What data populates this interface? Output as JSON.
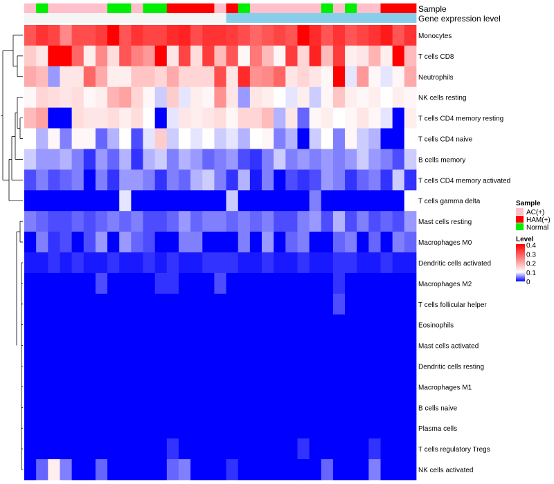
{
  "chart_data": {
    "type": "heatmap",
    "annotation_tracks": [
      "Sample",
      "Gene expression level"
    ],
    "sample_groups": [
      "AC(+)",
      "HAM(+)",
      "Normal"
    ],
    "sample_group_colors": {
      "AC(+)": "#ffc0cb",
      "HAM(+)": "#ff0000",
      "Normal": "#00ee00"
    },
    "sample_annotation": [
      0,
      2,
      0,
      0,
      0,
      0,
      0,
      2,
      2,
      0,
      2,
      2,
      1,
      1,
      1,
      1,
      0,
      1,
      2,
      0,
      0,
      0,
      0,
      0,
      0,
      2,
      0,
      2,
      0,
      0,
      1,
      1,
      1
    ],
    "expression_colors": [
      "#f5f5f5",
      "#87ceeb"
    ],
    "expression_split_column": 17,
    "rows": [
      "Monocytes",
      "T cells CD8",
      "Neutrophils",
      "NK cells resting",
      "T cells CD4 memory resting",
      "T cells CD4 naive",
      "B cells memory",
      "T cells CD4 memory activated",
      "T cells gamma delta",
      "Mast cells resting",
      "Macrophages M0",
      "Dendritic cells activated",
      "Macrophages M2",
      "T cells follicular helper",
      "Eosinophils",
      "Mast cells activated",
      "Dendritic cells resting",
      "Macrophages M1",
      "B cells naive",
      "Plasma cells",
      "T cells regulatory  Tregs",
      "NK cells activated"
    ],
    "values": [
      [
        0.3,
        0.34,
        0.32,
        0.24,
        0.31,
        0.31,
        0.33,
        0.4,
        0.3,
        0.34,
        0.32,
        0.32,
        0.35,
        0.36,
        0.31,
        0.34,
        0.34,
        0.33,
        0.31,
        0.28,
        0.3,
        0.32,
        0.3,
        0.4,
        0.35,
        0.3,
        0.34,
        0.3,
        0.32,
        0.34,
        0.37,
        0.3,
        0.34
      ],
      [
        0.16,
        0.13,
        0.4,
        0.4,
        0.28,
        0.12,
        0.24,
        0.14,
        0.3,
        0.25,
        0.22,
        0.4,
        0.13,
        0.32,
        0.14,
        0.33,
        0.18,
        0.3,
        0.11,
        0.26,
        0.18,
        0.11,
        0.33,
        0.15,
        0.36,
        0.18,
        0.33,
        0.12,
        0.13,
        0.19,
        0.12,
        0.4,
        0.18
      ],
      [
        0.2,
        0.18,
        0.06,
        0.13,
        0.13,
        0.28,
        0.2,
        0.12,
        0.12,
        0.17,
        0.17,
        0.15,
        0.2,
        0.15,
        0.15,
        0.15,
        0.31,
        0.13,
        0.35,
        0.23,
        0.24,
        0.28,
        0.13,
        0.15,
        0.13,
        0.11,
        0.4,
        0.09,
        0.22,
        0.11,
        0.09,
        0.11,
        0.2
      ],
      [
        0.11,
        0.15,
        0.14,
        0.13,
        0.14,
        0.11,
        0.12,
        0.19,
        0.21,
        0.15,
        0.11,
        0.08,
        0.16,
        0.09,
        0.12,
        0.11,
        0.23,
        0.13,
        0.06,
        0.13,
        0.12,
        0.1,
        0.09,
        0.12,
        0.08,
        0.11,
        0.17,
        0.12,
        0.11,
        0.12,
        0.1,
        0.12,
        0.11
      ],
      [
        0.18,
        0.21,
        0.0,
        0.0,
        0.14,
        0.13,
        0.13,
        0.14,
        0.12,
        0.14,
        0.1,
        0.0,
        0.09,
        0.13,
        0.12,
        0.13,
        0.14,
        0.11,
        0.15,
        0.15,
        0.18,
        0.07,
        0.13,
        0.04,
        0.11,
        0.12,
        0.1,
        0.11,
        0.13,
        0.11,
        0.09,
        0.0,
        0.12
      ],
      [
        0.1,
        0.07,
        0.11,
        0.05,
        0.11,
        0.11,
        0.04,
        0.07,
        0.1,
        0.03,
        0.09,
        0.16,
        0.08,
        0.1,
        0.09,
        0.1,
        0.08,
        0.09,
        0.07,
        0.1,
        0.11,
        0.05,
        0.07,
        0.0,
        0.08,
        0.1,
        0.05,
        0.11,
        0.08,
        0.07,
        0.0,
        0.0,
        0.1
      ],
      [
        0.08,
        0.06,
        0.06,
        0.07,
        0.05,
        0.02,
        0.06,
        0.04,
        0.07,
        0.02,
        0.07,
        0.08,
        0.05,
        0.07,
        0.06,
        0.04,
        0.05,
        0.06,
        0.03,
        0.02,
        0.05,
        0.08,
        0.05,
        0.06,
        0.05,
        0.06,
        0.05,
        0.06,
        0.08,
        0.06,
        0.05,
        0.03,
        0.08
      ],
      [
        0.03,
        0.05,
        0.03,
        0.04,
        0.05,
        0.0,
        0.05,
        0.02,
        0.06,
        0.06,
        0.05,
        0.02,
        0.05,
        0.04,
        0.07,
        0.08,
        0.05,
        0.02,
        0.07,
        0.01,
        0.05,
        0.0,
        0.03,
        0.02,
        0.03,
        0.06,
        0.05,
        0.02,
        0.04,
        0.05,
        0.02,
        0.08,
        0.02
      ],
      [
        0.0,
        0.0,
        0.0,
        0.0,
        0.0,
        0.0,
        0.0,
        0.0,
        0.09,
        0.0,
        0.0,
        0.0,
        0.0,
        0.0,
        0.0,
        0.0,
        0.0,
        0.08,
        0.0,
        0.0,
        0.0,
        0.0,
        0.0,
        0.0,
        0.05,
        0.0,
        0.0,
        0.0,
        0.0,
        0.0,
        0.0,
        0.0,
        0.1
      ],
      [
        0.05,
        0.04,
        0.03,
        0.03,
        0.04,
        0.03,
        0.04,
        0.05,
        0.04,
        0.05,
        0.03,
        0.03,
        0.04,
        0.06,
        0.04,
        0.05,
        0.05,
        0.04,
        0.05,
        0.04,
        0.05,
        0.03,
        0.03,
        0.05,
        0.06,
        0.03,
        0.07,
        0.03,
        0.05,
        0.03,
        0.04,
        0.03,
        0.06
      ],
      [
        0.0,
        0.05,
        0.02,
        0.03,
        0.0,
        0.03,
        0.06,
        0.0,
        0.06,
        0.04,
        0.03,
        0.0,
        0.0,
        0.05,
        0.05,
        0.0,
        0.0,
        0.0,
        0.05,
        0.0,
        0.06,
        0.0,
        0.04,
        0.05,
        0.0,
        0.0,
        0.04,
        0.05,
        0.0,
        0.04,
        0.0,
        0.05,
        0.04
      ],
      [
        0.01,
        0.01,
        0.02,
        0.01,
        0.02,
        0.01,
        0.01,
        0.02,
        0.01,
        0.01,
        0.02,
        0.01,
        0.02,
        0.01,
        0.01,
        0.02,
        0.02,
        0.02,
        0.01,
        0.01,
        0.02,
        0.01,
        0.01,
        0.02,
        0.01,
        0.01,
        0.02,
        0.02,
        0.01,
        0.01,
        0.02,
        0.01,
        0.01
      ],
      [
        0.0,
        0.0,
        0.0,
        0.0,
        0.0,
        0.0,
        0.03,
        0.0,
        0.0,
        0.0,
        0.0,
        0.02,
        0.02,
        0.0,
        0.0,
        0.0,
        0.03,
        0.0,
        0.0,
        0.0,
        0.0,
        0.0,
        0.0,
        0.0,
        0.0,
        0.0,
        0.02,
        0.0,
        0.0,
        0.0,
        0.0,
        0.0,
        0.0
      ],
      [
        0.0,
        0.0,
        0.0,
        0.0,
        0.0,
        0.0,
        0.0,
        0.0,
        0.0,
        0.0,
        0.0,
        0.0,
        0.0,
        0.0,
        0.0,
        0.0,
        0.0,
        0.0,
        0.0,
        0.0,
        0.0,
        0.0,
        0.0,
        0.0,
        0.0,
        0.0,
        0.03,
        0.0,
        0.0,
        0.0,
        0.0,
        0.0,
        0.0
      ],
      [
        0.0,
        0.0,
        0.0,
        0.0,
        0.0,
        0.0,
        0.0,
        0.0,
        0.0,
        0.0,
        0.0,
        0.0,
        0.0,
        0.0,
        0.0,
        0.0,
        0.0,
        0.0,
        0.0,
        0.0,
        0.0,
        0.0,
        0.0,
        0.0,
        0.0,
        0.0,
        0.0,
        0.0,
        0.0,
        0.0,
        0.0,
        0.0,
        0.0
      ],
      [
        0.0,
        0.0,
        0.0,
        0.0,
        0.0,
        0.0,
        0.0,
        0.0,
        0.0,
        0.0,
        0.0,
        0.0,
        0.0,
        0.0,
        0.0,
        0.0,
        0.0,
        0.0,
        0.0,
        0.0,
        0.0,
        0.0,
        0.0,
        0.0,
        0.0,
        0.0,
        0.0,
        0.0,
        0.0,
        0.0,
        0.0,
        0.0,
        0.0
      ],
      [
        0.0,
        0.0,
        0.0,
        0.0,
        0.0,
        0.0,
        0.0,
        0.0,
        0.0,
        0.0,
        0.0,
        0.0,
        0.0,
        0.0,
        0.0,
        0.0,
        0.0,
        0.0,
        0.0,
        0.0,
        0.0,
        0.0,
        0.0,
        0.0,
        0.0,
        0.0,
        0.0,
        0.0,
        0.0,
        0.0,
        0.0,
        0.0,
        0.0
      ],
      [
        0.0,
        0.0,
        0.0,
        0.0,
        0.0,
        0.0,
        0.0,
        0.0,
        0.0,
        0.0,
        0.0,
        0.0,
        0.0,
        0.0,
        0.0,
        0.0,
        0.0,
        0.0,
        0.0,
        0.0,
        0.0,
        0.0,
        0.0,
        0.0,
        0.0,
        0.0,
        0.0,
        0.0,
        0.0,
        0.0,
        0.0,
        0.0,
        0.0
      ],
      [
        0.0,
        0.0,
        0.0,
        0.0,
        0.0,
        0.0,
        0.0,
        0.0,
        0.0,
        0.0,
        0.0,
        0.0,
        0.0,
        0.0,
        0.0,
        0.0,
        0.0,
        0.0,
        0.0,
        0.0,
        0.0,
        0.0,
        0.0,
        0.0,
        0.0,
        0.0,
        0.0,
        0.0,
        0.0,
        0.0,
        0.0,
        0.0,
        0.0
      ],
      [
        0.0,
        0.0,
        0.0,
        0.0,
        0.0,
        0.0,
        0.0,
        0.0,
        0.0,
        0.0,
        0.0,
        0.0,
        0.0,
        0.0,
        0.0,
        0.0,
        0.0,
        0.0,
        0.0,
        0.0,
        0.0,
        0.0,
        0.0,
        0.0,
        0.0,
        0.0,
        0.0,
        0.0,
        0.0,
        0.0,
        0.0,
        0.0,
        0.0
      ],
      [
        0.0,
        0.0,
        0.0,
        0.0,
        0.0,
        0.0,
        0.0,
        0.0,
        0.0,
        0.0,
        0.0,
        0.0,
        0.02,
        0.0,
        0.0,
        0.0,
        0.0,
        0.0,
        0.0,
        0.0,
        0.0,
        0.0,
        0.0,
        0.02,
        0.0,
        0.0,
        0.0,
        0.0,
        0.0,
        0.02,
        0.0,
        0.0,
        0.0
      ],
      [
        0.0,
        0.04,
        0.12,
        0.05,
        0.0,
        0.0,
        0.04,
        0.0,
        0.0,
        0.0,
        0.0,
        0.0,
        0.04,
        0.05,
        0.0,
        0.0,
        0.0,
        0.02,
        0.0,
        0.0,
        0.0,
        0.0,
        0.0,
        0.0,
        0.0,
        0.04,
        0.0,
        0.0,
        0.0,
        0.05,
        0.0,
        0.0,
        0.0
      ]
    ],
    "legend": {
      "sample_title": "Sample",
      "level_title": "Level",
      "level_ticks": [
        0.4,
        0.3,
        0.2,
        0.1,
        0
      ],
      "level_min": 0,
      "level_mid": 0.1,
      "level_max": 0.4,
      "color_low": "#0000ff",
      "color_mid": "#ffffff",
      "color_high": "#ff0000"
    }
  }
}
